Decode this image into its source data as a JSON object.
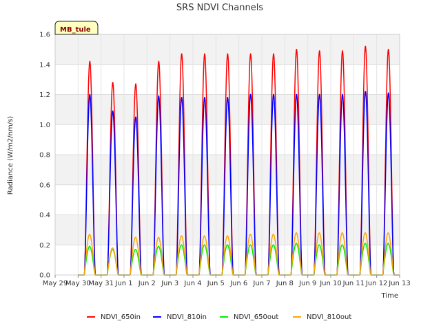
{
  "chart_data": {
    "type": "line",
    "title": "SRS NDVI Channels",
    "xlabel": "Time",
    "ylabel": "Radiance (W/m2/nm/s)",
    "ylim": [
      0.0,
      1.6
    ],
    "yticks": [
      "0.0",
      "0.2",
      "0.4",
      "0.6",
      "0.8",
      "1.0",
      "1.2",
      "1.4",
      "1.6"
    ],
    "xlim": [
      "2021-05-29",
      "2021-06-13"
    ],
    "xticks": [
      "May 29",
      "May 30",
      "May 31",
      "Jun 1",
      "Jun 2",
      "Jun 3",
      "Jun 4",
      "Jun 5",
      "Jun 6",
      "Jun 7",
      "Jun 8",
      "Jun 9",
      "Jun 10",
      "Jun 11",
      "Jun 12",
      "Jun 13"
    ],
    "site_label": "MB_tule",
    "legend_position": "bottom",
    "grid": true,
    "days": [
      "May 30",
      "May 31",
      "Jun 1",
      "Jun 2",
      "Jun 3",
      "Jun 4",
      "Jun 5",
      "Jun 6",
      "Jun 7",
      "Jun 8",
      "Jun 9",
      "Jun 10",
      "Jun 11",
      "Jun 12"
    ],
    "series": [
      {
        "name": "NDVI_650in",
        "color": "#ff0000",
        "daily_peaks": [
          1.42,
          1.28,
          1.27,
          1.42,
          1.47,
          1.47,
          1.47,
          1.47,
          1.47,
          1.5,
          1.49,
          1.49,
          1.52,
          1.5
        ]
      },
      {
        "name": "NDVI_810in",
        "color": "#0000ff",
        "daily_peaks": [
          1.2,
          1.09,
          1.05,
          1.19,
          1.18,
          1.18,
          1.18,
          1.2,
          1.2,
          1.2,
          1.2,
          1.2,
          1.22,
          1.21
        ]
      },
      {
        "name": "NDVI_650out",
        "color": "#00ee00",
        "daily_peaks": [
          0.19,
          0.17,
          0.17,
          0.19,
          0.2,
          0.2,
          0.2,
          0.2,
          0.2,
          0.21,
          0.2,
          0.2,
          0.21,
          0.21
        ]
      },
      {
        "name": "NDVI_810out",
        "color": "#ffa500",
        "daily_peaks": [
          0.27,
          0.18,
          0.25,
          0.25,
          0.26,
          0.26,
          0.26,
          0.27,
          0.27,
          0.28,
          0.28,
          0.28,
          0.28,
          0.28
        ]
      }
    ]
  }
}
